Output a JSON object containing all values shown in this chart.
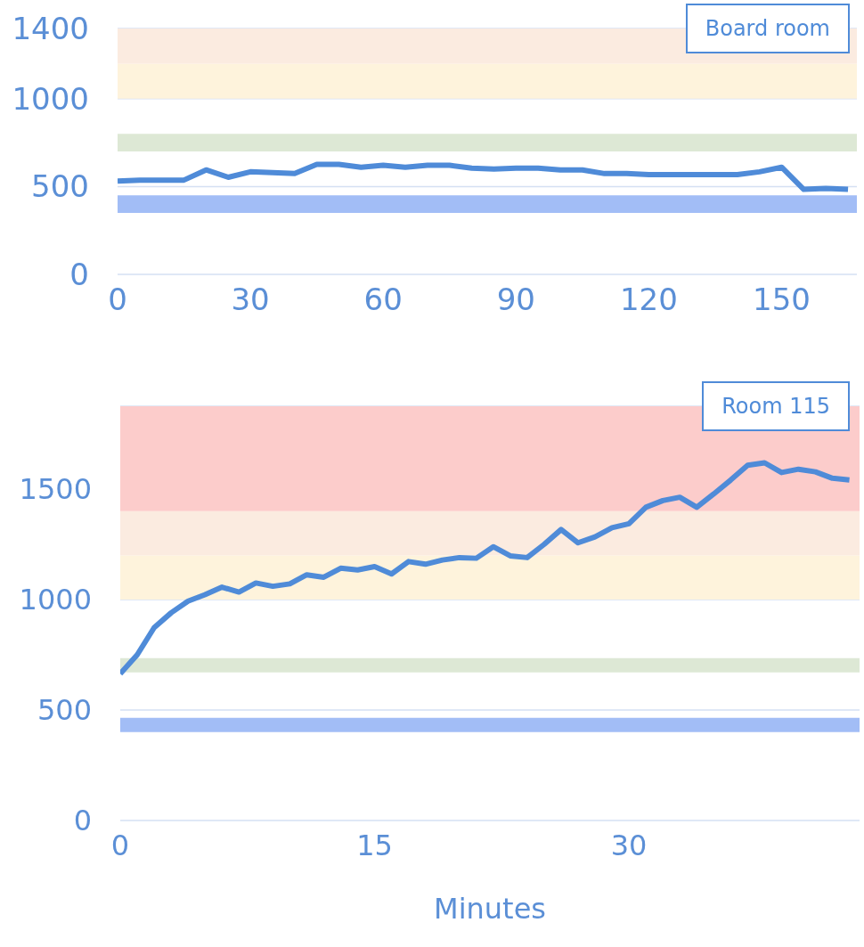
{
  "chart_data": [
    {
      "type": "line",
      "x": [
        0,
        5,
        10,
        15,
        20,
        25,
        30,
        35,
        40,
        45,
        50,
        55,
        60,
        65,
        70,
        75,
        80,
        85,
        90,
        95,
        100,
        105,
        110,
        115,
        120,
        125,
        130,
        135,
        140,
        145,
        150,
        155,
        160,
        165
      ],
      "series": [
        {
          "name": "Board room",
          "color": "#4f8bd8",
          "values": [
            531,
            537,
            537,
            537,
            595,
            553,
            584,
            579,
            574,
            626,
            626,
            610,
            621,
            610,
            621,
            621,
            605,
            600,
            605,
            605,
            595,
            595,
            574,
            574,
            568,
            568,
            568,
            568,
            568,
            584,
            610,
            484,
            490,
            484
          ]
        }
      ],
      "xlim": [
        0,
        167
      ],
      "xticks": [
        0,
        30,
        60,
        90,
        120,
        150
      ],
      "ylim": [
        0,
        1400
      ],
      "yticks": [
        0,
        500,
        1000,
        1400
      ],
      "grid": "y",
      "legend": "top right",
      "bands": [
        {
          "axis": "y",
          "from": 350,
          "to": 450,
          "color": "#a2bdf6"
        },
        {
          "axis": "y",
          "from": 700,
          "to": 800,
          "color": "#dde8d5"
        },
        {
          "axis": "y",
          "from": 1000,
          "to": 1200,
          "color": "#fef3dc"
        },
        {
          "axis": "y",
          "from": 1200,
          "to": 1400,
          "color": "#fbebe0"
        }
      ]
    },
    {
      "type": "line",
      "x": [
        0,
        1,
        2,
        3,
        4,
        5,
        6,
        7,
        8,
        9,
        10,
        11,
        12,
        13,
        14,
        15,
        16,
        17,
        18,
        19,
        20,
        21,
        22,
        23,
        24,
        25,
        26,
        27,
        28,
        29,
        30,
        31,
        32,
        33,
        34,
        35,
        36,
        37,
        38,
        39,
        40,
        41,
        42,
        43
      ],
      "series": [
        {
          "name": "Room 115",
          "color": "#4f8bd8",
          "values": [
            664,
            750,
            873,
            940,
            993,
            1022,
            1056,
            1034,
            1075,
            1060,
            1071,
            1112,
            1101,
            1142,
            1134,
            1149,
            1116,
            1172,
            1160,
            1179,
            1190,
            1187,
            1239,
            1198,
            1190,
            1250,
            1317,
            1257,
            1284,
            1325,
            1343,
            1418,
            1448,
            1463,
            1418,
            1478,
            1541,
            1608,
            1619,
            1575,
            1590,
            1578,
            1549,
            1541
          ]
        }
      ],
      "xlim": [
        0,
        43.6
      ],
      "xticks": [
        0,
        15,
        30
      ],
      "ylim": [
        0,
        1875
      ],
      "yticks": [
        0,
        500,
        1000,
        1500
      ],
      "grid": "y",
      "legend": "top right",
      "xlabel": "Minutes",
      "bands": [
        {
          "axis": "y",
          "from": 400,
          "to": 465,
          "color": "#a2bdf6"
        },
        {
          "axis": "y",
          "from": 670,
          "to": 735,
          "color": "#dde8d5"
        },
        {
          "axis": "y",
          "from": 1000,
          "to": 1200,
          "color": "#fef3dc"
        },
        {
          "axis": "y",
          "from": 1200,
          "to": 1400,
          "color": "#fbebe0"
        },
        {
          "axis": "y",
          "from": 1400,
          "to": 1875,
          "color": "#fccccb"
        }
      ]
    }
  ]
}
